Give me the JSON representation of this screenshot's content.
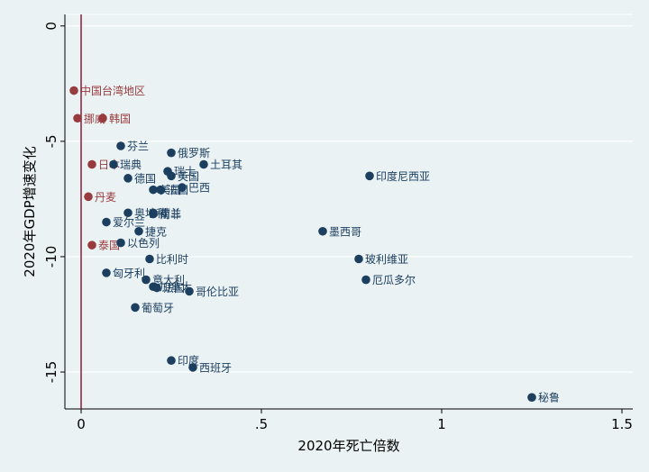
{
  "chart_data": {
    "type": "scatter",
    "title": "",
    "xlabel": "2020年死亡倍数",
    "ylabel": "2020年GDP增速变化",
    "xlim": [
      -0.045,
      1.53
    ],
    "ylim": [
      -16.6,
      0.5
    ],
    "x_ticks": [
      0,
      0.5,
      1,
      1.5
    ],
    "x_tick_labels": [
      "0",
      ".5",
      "1",
      "1.5"
    ],
    "y_ticks": [
      0,
      -5,
      -10,
      -15
    ],
    "y_tick_labels": [
      "0",
      "-5",
      "-10",
      "-15"
    ],
    "grid": "horizontal",
    "reference_line": {
      "x": 0,
      "color": "#8b1a3a"
    },
    "colors": {
      "highlight": "#983b3e",
      "default": "#1c3f60",
      "grid": "#ffffff",
      "background": "#eaf2f3"
    },
    "points": [
      {
        "name": "中国台湾地区",
        "x": -0.02,
        "y": -2.8,
        "group": "highlight"
      },
      {
        "name": "挪威",
        "x": -0.01,
        "y": -4.0,
        "group": "highlight"
      },
      {
        "name": "韩国",
        "x": 0.06,
        "y": -4.0,
        "group": "highlight"
      },
      {
        "name": "日本",
        "x": 0.03,
        "y": -6.0,
        "group": "highlight"
      },
      {
        "name": "丹麦",
        "x": 0.02,
        "y": -7.4,
        "group": "highlight"
      },
      {
        "name": "泰国",
        "x": 0.03,
        "y": -9.5,
        "group": "highlight"
      },
      {
        "name": "芬兰",
        "x": 0.11,
        "y": -5.2,
        "group": "default"
      },
      {
        "name": "瑞典",
        "x": 0.09,
        "y": -6.0,
        "group": "default"
      },
      {
        "name": "德国",
        "x": 0.13,
        "y": -6.6,
        "group": "default"
      },
      {
        "name": "奥地利",
        "x": 0.13,
        "y": -8.1,
        "group": "default"
      },
      {
        "name": "爱尔兰",
        "x": 0.07,
        "y": -8.5,
        "group": "default"
      },
      {
        "name": "以色列",
        "x": 0.11,
        "y": -9.4,
        "group": "default"
      },
      {
        "name": "捷克",
        "x": 0.16,
        "y": -8.9,
        "group": "default"
      },
      {
        "name": "荷兰",
        "x": 0.2,
        "y": -8.1,
        "group": "default"
      },
      {
        "name": "南非",
        "x": 0.2,
        "y": -8.15,
        "group": "default"
      },
      {
        "name": "俄罗斯",
        "x": 0.25,
        "y": -5.5,
        "group": "default"
      },
      {
        "name": "瑞士",
        "x": 0.24,
        "y": -6.3,
        "group": "default"
      },
      {
        "name": "英国",
        "x": 0.25,
        "y": -6.5,
        "group": "default"
      },
      {
        "name": "土耳其",
        "x": 0.34,
        "y": -6.0,
        "group": "default"
      },
      {
        "name": "美国",
        "x": 0.2,
        "y": -7.1,
        "group": "default"
      },
      {
        "name": "法国",
        "x": 0.22,
        "y": -7.1,
        "group": "default"
      },
      {
        "name": "巴西",
        "x": 0.28,
        "y": -7.0,
        "group": "default"
      },
      {
        "name": "比利时",
        "x": 0.19,
        "y": -10.1,
        "group": "default"
      },
      {
        "name": "匈牙利",
        "x": 0.07,
        "y": -10.7,
        "group": "default"
      },
      {
        "name": "意大利",
        "x": 0.18,
        "y": -11.0,
        "group": "default"
      },
      {
        "name": "加拿大",
        "x": 0.2,
        "y": -11.3,
        "group": "default"
      },
      {
        "name": "法国",
        "x": 0.21,
        "y": -11.35,
        "group": "default"
      },
      {
        "name": "哥伦比亚",
        "x": 0.3,
        "y": -11.5,
        "group": "default"
      },
      {
        "name": "葡萄牙",
        "x": 0.15,
        "y": -12.2,
        "group": "default"
      },
      {
        "name": "墨西哥",
        "x": 0.67,
        "y": -8.9,
        "group": "default"
      },
      {
        "name": "印度尼西亚",
        "x": 0.8,
        "y": -6.5,
        "group": "default"
      },
      {
        "name": "玻利维亚",
        "x": 0.77,
        "y": -10.1,
        "group": "default"
      },
      {
        "name": "厄瓜多尔",
        "x": 0.79,
        "y": -11.0,
        "group": "default"
      },
      {
        "name": "印度",
        "x": 0.25,
        "y": -14.5,
        "group": "default"
      },
      {
        "name": "西班牙",
        "x": 0.31,
        "y": -14.8,
        "group": "default"
      },
      {
        "name": "秘鲁",
        "x": 1.25,
        "y": -16.1,
        "group": "default"
      }
    ]
  }
}
